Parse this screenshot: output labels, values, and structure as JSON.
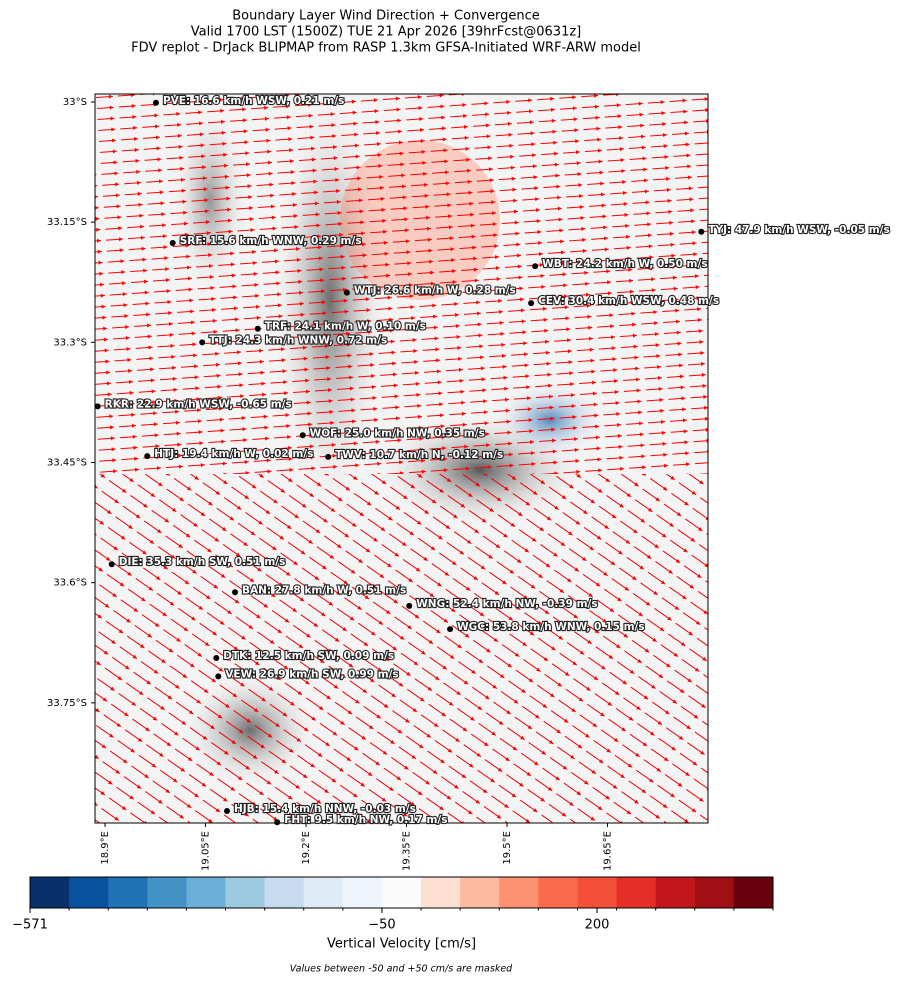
{
  "title": [
    "Boundary Layer Wind Direction + Convergence",
    "Valid 1700 LST (1500Z) TUE 21 Apr 2026 [39hrFcst@0631z]",
    "FDV replot - DrJack BLIPMAP from RASP 1.3km GFSA-Initiated WRF-ARW model"
  ],
  "map": {
    "xlim": [
      18.885,
      19.8
    ],
    "ylim": [
      32.99,
      33.9
    ],
    "xticks": [
      {
        "value": 18.9,
        "label": "18.9°E"
      },
      {
        "value": 19.05,
        "label": "19.05°E"
      },
      {
        "value": 19.2,
        "label": "19.2°E"
      },
      {
        "value": 19.35,
        "label": "19.35°E"
      },
      {
        "value": 19.5,
        "label": "19.5°E"
      },
      {
        "value": 19.65,
        "label": "19.65°E"
      }
    ],
    "yticks": [
      {
        "value": 33.0,
        "label": "33°S"
      },
      {
        "value": 33.15,
        "label": "33.15°S"
      },
      {
        "value": 33.3,
        "label": "33.3°S"
      },
      {
        "value": 33.45,
        "label": "33.45°S"
      },
      {
        "value": 33.6,
        "label": "33.6°S"
      },
      {
        "value": 33.75,
        "label": "33.75°S"
      }
    ],
    "stations": [
      {
        "label": "PVE: 16.6 km/h WSW, 0.21 m/s",
        "lon": 18.976,
        "lat": 33.001
      },
      {
        "label": "SRF: 15.6 km/h WNW, 0.29 m/s",
        "lon": 19.001,
        "lat": 33.176
      },
      {
        "label": "TYJ: 47.9 km/h WSW, -0.05 m/s",
        "lon": 19.79,
        "lat": 33.162
      },
      {
        "label": "WBT: 24.2 km/h W, 0.50 m/s",
        "lon": 19.542,
        "lat": 33.205
      },
      {
        "label": "WTJ: 26.6 km/h W, 0.28 m/s",
        "lon": 19.261,
        "lat": 33.238
      },
      {
        "label": "CEV: 30.4 km/h WSW, 0.48 m/s",
        "lon": 19.536,
        "lat": 33.251
      },
      {
        "label": "TRF: 24.1 km/h W, 0.10 m/s",
        "lon": 19.128,
        "lat": 33.283
      },
      {
        "label": "TTJ: 24.3 km/h WNW, 0.72 m/s",
        "lon": 19.045,
        "lat": 33.3
      },
      {
        "label": "RKR: 22.9 km/h WSW, -0.65 m/s",
        "lon": 18.889,
        "lat": 33.38
      },
      {
        "label": "WOF: 25.0 km/h NW, 0.35 m/s",
        "lon": 19.195,
        "lat": 33.416
      },
      {
        "label": "HTJ: 19.4 km/h W, 0.02 m/s",
        "lon": 18.963,
        "lat": 33.442
      },
      {
        "label": "TWV: 10.7 km/h N, -0.12 m/s",
        "lon": 19.233,
        "lat": 33.443
      },
      {
        "label": "DIE: 35.3 km/h SW, 0.51 m/s",
        "lon": 18.91,
        "lat": 33.577
      },
      {
        "label": "BAN: 27.8 km/h W, 0.51 m/s",
        "lon": 19.094,
        "lat": 33.612
      },
      {
        "label": "WNG: 52.4 km/h NW, -0.39 m/s",
        "lon": 19.354,
        "lat": 33.629
      },
      {
        "label": "WGC: 53.8 km/h WNW, 0.15 m/s",
        "lon": 19.415,
        "lat": 33.658
      },
      {
        "label": "DTK: 12.5 km/h SW, 0.09 m/s",
        "lon": 19.066,
        "lat": 33.694
      },
      {
        "label": "VEW: 26.9 km/h SW, 0.99 m/s",
        "lon": 19.069,
        "lat": 33.717
      },
      {
        "label": "HJB: 15.4 km/h NNW, -0.03 m/s",
        "lon": 19.082,
        "lat": 33.885
      },
      {
        "label": "FHT: 9.5 km/h NW, 0.17 m/s",
        "lon": 19.157,
        "lat": 33.899
      }
    ]
  },
  "colorbar": {
    "colors": [
      "#08306b",
      "#08519c",
      "#2171b5",
      "#4292c6",
      "#6baed6",
      "#9ecae1",
      "#c6dbef",
      "#deebf7",
      "#eef5fc",
      "#fbfbfb",
      "#fee0d2",
      "#fcbba1",
      "#fc9272",
      "#fb6a4a",
      "#f44f39",
      "#e32f27",
      "#c2161b",
      "#a10e15",
      "#67000d"
    ],
    "boundaries": [
      -571,
      -513,
      -455,
      -397,
      -339,
      -281,
      -223,
      -166,
      -108,
      -50,
      50,
      85,
      120,
      155,
      185,
      215,
      250,
      290,
      330,
      370
    ],
    "ticks": [
      {
        "value": -571,
        "label": "−571"
      },
      {
        "value": -50,
        "label": "−50"
      },
      200
    ],
    "label": "Vertical Velocity [cm/s]",
    "note": "Values between -50 and +50 cm/s are masked"
  }
}
